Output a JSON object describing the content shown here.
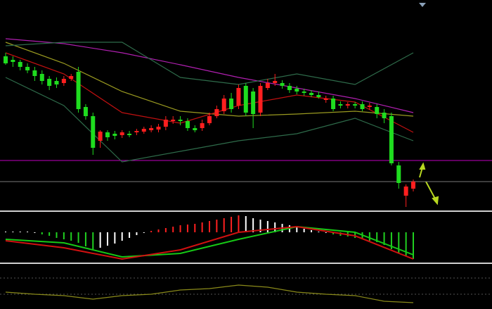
{
  "chart_data": [
    {
      "type": "candlestick",
      "xlim": [
        0,
        56
      ],
      "ylim": [
        0,
        298
      ],
      "up_color": "#ff1f1f",
      "down_color": "#1fdd1f",
      "open": [
        218,
        213,
        210,
        203,
        198,
        193,
        186,
        183,
        180,
        186,
        196,
        146,
        133,
        98,
        110,
        108,
        106,
        108,
        110,
        111,
        113,
        114,
        118,
        126,
        128,
        126,
        116,
        116,
        123,
        133,
        140,
        158,
        148,
        176,
        168,
        138,
        173,
        180,
        180,
        176,
        172,
        168,
        166,
        163,
        156,
        158,
        150,
        148,
        150,
        150,
        146,
        146,
        138,
        133,
        63,
        20,
        30
      ],
      "close": [
        208,
        210,
        203,
        198,
        190,
        183,
        176,
        178,
        186,
        190,
        143,
        133,
        88,
        111,
        103,
        105,
        110,
        106,
        112,
        115,
        116,
        118,
        128,
        128,
        126,
        116,
        113,
        123,
        133,
        143,
        158,
        143,
        173,
        138,
        136,
        176,
        180,
        183,
        176,
        170,
        168,
        166,
        163,
        160,
        158,
        143,
        148,
        150,
        148,
        143,
        148,
        136,
        130,
        66,
        38,
        33,
        40
      ],
      "high": [
        223,
        218,
        213,
        208,
        203,
        198,
        190,
        188,
        190,
        193,
        203,
        150,
        138,
        113,
        113,
        112,
        113,
        112,
        115,
        118,
        120,
        122,
        133,
        133,
        133,
        130,
        120,
        128,
        138,
        148,
        163,
        166,
        178,
        180,
        173,
        180,
        186,
        193,
        184,
        180,
        176,
        172,
        170,
        168,
        162,
        162,
        154,
        153,
        153,
        154,
        152,
        150,
        143,
        138,
        68,
        36,
        43
      ],
      "low": [
        206,
        203,
        198,
        194,
        183,
        178,
        170,
        173,
        176,
        183,
        138,
        128,
        78,
        88,
        98,
        100,
        102,
        103,
        106,
        108,
        110,
        110,
        113,
        122,
        120,
        112,
        110,
        112,
        120,
        130,
        136,
        138,
        143,
        133,
        116,
        133,
        170,
        176,
        172,
        166,
        164,
        162,
        160,
        158,
        152,
        140,
        144,
        144,
        144,
        140,
        142,
        130,
        123,
        63,
        30,
        4,
        26
      ],
      "series": [
        {
          "color": "#b01fb0",
          "x": [
            0,
            8,
            16,
            24,
            32,
            40,
            48,
            56
          ],
          "values": [
            243,
            236,
            223,
            206,
            188,
            173,
            158,
            138
          ]
        },
        {
          "color": "#9a9a20",
          "x": [
            0,
            8,
            16,
            24,
            32,
            40,
            48,
            56
          ],
          "values": [
            238,
            208,
            168,
            140,
            133,
            136,
            140,
            133
          ]
        },
        {
          "color": "#c01010",
          "x": [
            0,
            8,
            16,
            24,
            32,
            40,
            48,
            56
          ],
          "values": [
            223,
            193,
            138,
            123,
            148,
            163,
            153,
            110
          ]
        },
        {
          "color": "#2e6b4a",
          "x": [
            0,
            8,
            16,
            24,
            32,
            40,
            48,
            56
          ],
          "values": [
            233,
            238,
            238,
            188,
            178,
            193,
            178,
            223
          ]
        },
        {
          "color": "#2e6b4a",
          "x": [
            0,
            8,
            16,
            24,
            32,
            40,
            48,
            56
          ],
          "values": [
            188,
            148,
            68,
            83,
            98,
            108,
            130,
            98
          ]
        }
      ],
      "levels": [
        70,
        40
      ],
      "level_colors": [
        "#c000c0",
        "#7a7a7a"
      ]
    },
    {
      "type": "bar",
      "xlim": [
        0,
        56
      ],
      "ylim": [
        -42,
        28
      ],
      "rising_color": "#ff2020",
      "falling_color": "#20d020",
      "fading_color": "#ffffff",
      "values": [
        1,
        1,
        1,
        1,
        -1,
        -3,
        -5,
        -8,
        -10,
        -12,
        -15,
        -20,
        -24,
        -22,
        -19,
        -16,
        -12,
        -8,
        -4,
        -1,
        2,
        4,
        6,
        8,
        10,
        11,
        12,
        14,
        16,
        18,
        20,
        22,
        24,
        23,
        20,
        18,
        16,
        14,
        12,
        10,
        8,
        5,
        3,
        1,
        -1,
        -3,
        -5,
        -6,
        -8,
        -10,
        -12,
        -14,
        -18,
        -24,
        -30,
        -34,
        -38
      ],
      "series": [
        {
          "color": "#16c816",
          "x": [
            0,
            8,
            16,
            24,
            32,
            40,
            48,
            56
          ],
          "values": [
            -10,
            -15,
            -35,
            -30,
            -10,
            8,
            0,
            -32
          ]
        },
        {
          "color": "#d01010",
          "x": [
            0,
            8,
            16,
            24,
            32,
            40,
            48,
            56
          ],
          "values": [
            -12,
            -22,
            -38,
            -25,
            0,
            8,
            -5,
            -38
          ]
        }
      ]
    },
    {
      "type": "line",
      "xlim": [
        0,
        56
      ],
      "ylim": [
        0,
        59
      ],
      "level_dashed": true,
      "levels": [
        42,
        19
      ],
      "level_colors": [
        "#555555",
        "#555555"
      ],
      "series": [
        {
          "color": "#8a8a1a",
          "x": [
            0,
            4,
            8,
            12,
            16,
            20,
            24,
            28,
            32,
            36,
            40,
            44,
            48,
            52,
            56
          ],
          "values": [
            22,
            19,
            17,
            12,
            17,
            19,
            25,
            27,
            32,
            29,
            22,
            19,
            17,
            9,
            7
          ]
        }
      ]
    }
  ]
}
